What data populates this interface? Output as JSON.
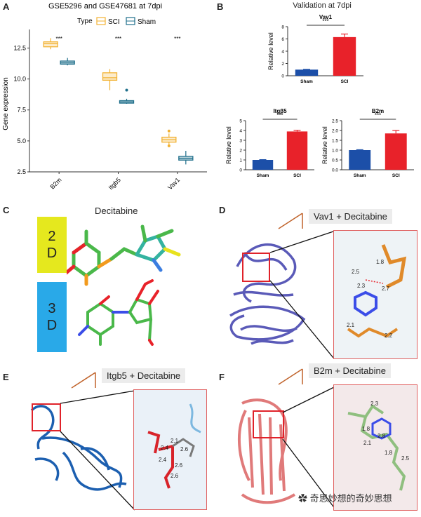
{
  "panels": {
    "A": {
      "letter": "A"
    },
    "B": {
      "letter": "B"
    },
    "C": {
      "letter": "C",
      "title": "Decitabine",
      "box_2d": "2\nD",
      "box_3d": "3\nD"
    },
    "D": {
      "letter": "D",
      "tag": "Vav1 + Decitabine",
      "distances": [
        "1.8",
        "2.5",
        "2.3",
        "2.7",
        "2.1",
        "2.2"
      ]
    },
    "E": {
      "letter": "E",
      "tag": "Itgb5 + Decitabine",
      "distances": [
        "2.1",
        "2.4",
        "2.4",
        "2.6",
        "2.6",
        "2.6"
      ]
    },
    "F": {
      "letter": "F",
      "tag": "B2m + Decitabine",
      "distances": [
        "2.3",
        "1.8",
        "2.8",
        "2.1",
        "1.8",
        "2.5"
      ]
    }
  },
  "colors": {
    "sci_box": "#f2b233",
    "sham_box": "#1f6f8b",
    "sham_bar": "#1c4fa8",
    "sci_bar": "#e8222a"
  },
  "watermark": "奇思妙想的奇妙思想",
  "chart_data": [
    {
      "type": "box",
      "panel": "A",
      "title": "GSE5296 and GSE47681 at 7dpi",
      "ylabel": "Gene expression",
      "xlabel": "",
      "legend_title": "Type",
      "legend": [
        "SCI",
        "Sham"
      ],
      "categories": [
        "B2m",
        "Itgb5",
        "Vav1"
      ],
      "ylim": [
        2.5,
        14
      ],
      "yticks": [
        "2.5",
        "5.0",
        "7.5",
        "10.0",
        "12.5"
      ],
      "significance": [
        "***",
        "***",
        "***"
      ],
      "series": [
        {
          "name": "SCI",
          "boxes": [
            {
              "min": 12.4,
              "q1": 12.6,
              "median": 12.85,
              "q3": 13.0,
              "max": 13.3,
              "outliers": []
            },
            {
              "min": 9.1,
              "q1": 9.9,
              "median": 10.1,
              "q3": 10.5,
              "max": 10.8,
              "outliers": []
            },
            {
              "min": 4.5,
              "q1": 4.9,
              "median": 5.1,
              "q3": 5.3,
              "max": 5.6,
              "outliers": [
                5.8,
                4.6
              ]
            }
          ]
        },
        {
          "name": "Sham",
          "boxes": [
            {
              "min": 11.1,
              "q1": 11.2,
              "median": 11.3,
              "q3": 11.45,
              "max": 11.7,
              "outliers": []
            },
            {
              "min": 8.0,
              "q1": 8.05,
              "median": 8.15,
              "q3": 8.25,
              "max": 8.4,
              "outliers": [
                9.1
              ]
            },
            {
              "min": 3.1,
              "q1": 3.45,
              "median": 3.6,
              "q3": 3.75,
              "max": 4.2,
              "outliers": []
            }
          ]
        }
      ]
    },
    {
      "type": "bar",
      "panel": "B",
      "suptitle": "Validation at 7dpi",
      "title": "Vav1",
      "categories": [
        "Sham",
        "SCI"
      ],
      "values": [
        1.0,
        6.3
      ],
      "errors": [
        0.05,
        0.5
      ],
      "ylabel": "Relative level",
      "ylim": [
        0,
        8
      ],
      "yticks": [
        "0",
        "2",
        "4",
        "6",
        "8"
      ],
      "significance": "***"
    },
    {
      "type": "bar",
      "panel": "B",
      "title": "Itgβ5",
      "categories": [
        "Sham",
        "SCI"
      ],
      "values": [
        1.0,
        3.9
      ],
      "errors": [
        0.03,
        0.12
      ],
      "ylabel": "Relative level",
      "ylim": [
        0,
        5
      ],
      "yticks": [
        "0",
        "1",
        "2",
        "3",
        "4",
        "5"
      ],
      "significance": "***"
    },
    {
      "type": "bar",
      "panel": "B",
      "title": "B2m",
      "categories": [
        "Sham",
        "SCI"
      ],
      "values": [
        1.0,
        1.85
      ],
      "errors": [
        0.02,
        0.15
      ],
      "ylabel": "Relative level",
      "ylim": [
        0,
        2.5
      ],
      "yticks": [
        "0.0",
        "0.5",
        "1.0",
        "1.5",
        "2.0",
        "2.5"
      ],
      "significance": "***"
    }
  ]
}
